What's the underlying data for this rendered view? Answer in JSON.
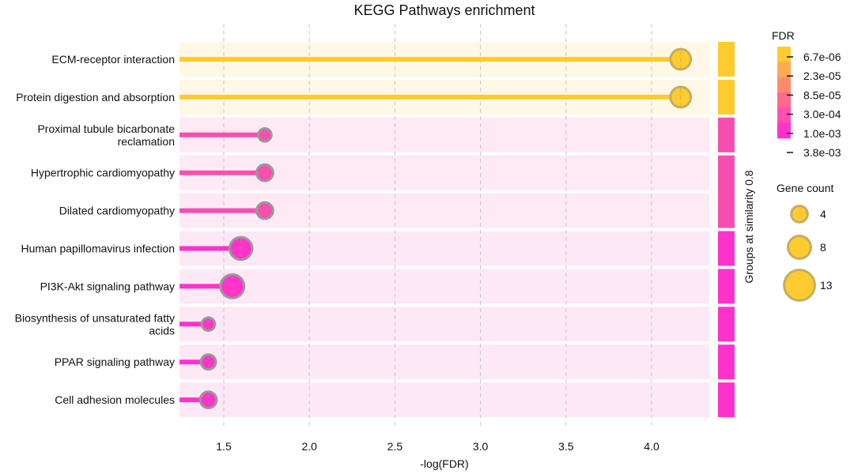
{
  "chart_data": {
    "type": "scatter",
    "title": "KEGG Pathways enrichment",
    "xlabel": "-log(FDR)",
    "xlim": [
      1.25,
      4.35
    ],
    "xticks": [
      1.5,
      2.0,
      2.5,
      3.0,
      3.5,
      4.0
    ],
    "xtick_labels": [
      "1.5",
      "2.0",
      "2.5",
      "3.0",
      "3.5",
      "4.0"
    ],
    "grid": "x-dashed",
    "categories": [
      {
        "label": [
          "ECM-receptor interaction"
        ],
        "x": 4.17,
        "gene_count": 8,
        "color": "#ffcb2e",
        "band": "#fff8e6"
      },
      {
        "label": [
          "Protein digestion and absorption"
        ],
        "x": 4.17,
        "gene_count": 8,
        "color": "#ffcb2e",
        "band": "#fff8e6"
      },
      {
        "label": [
          "Proximal tubule bicarbonate",
          "reclamation"
        ],
        "x": 1.74,
        "gene_count": 3,
        "color": "#f84eb0",
        "band": "#fdeaf5"
      },
      {
        "label": [
          "Hypertrophic cardiomyopathy"
        ],
        "x": 1.74,
        "gene_count": 5,
        "color": "#f84eb0",
        "band": "#fdeaf5"
      },
      {
        "label": [
          "Dilated cardiomyopathy"
        ],
        "x": 1.74,
        "gene_count": 5,
        "color": "#f84eb0",
        "band": "#fdeaf5"
      },
      {
        "label": [
          "Human papillomavirus infection"
        ],
        "x": 1.6,
        "gene_count": 10,
        "color": "#ff33cc",
        "band": "#fde8f6"
      },
      {
        "label": [
          "PI3K-Akt signaling pathway"
        ],
        "x": 1.55,
        "gene_count": 11,
        "color": "#ff33cc",
        "band": "#fde8f6"
      },
      {
        "label": [
          "Biosynthesis of unsaturated fatty",
          "acids"
        ],
        "x": 1.41,
        "gene_count": 3,
        "color": "#ff33cc",
        "band": "#fde8f6"
      },
      {
        "label": [
          "PPAR signaling pathway"
        ],
        "x": 1.41,
        "gene_count": 4,
        "color": "#ff33cc",
        "band": "#fde8f6"
      },
      {
        "label": [
          "Cell adhesion molecules"
        ],
        "x": 1.41,
        "gene_count": 5,
        "color": "#ff33cc",
        "band": "#fde8f6"
      }
    ],
    "group_strip": {
      "label": "Groups at similarity 0.8",
      "groups": [
        {
          "rows": [
            0,
            0
          ],
          "color": "#ffcb2e"
        },
        {
          "rows": [
            1,
            1
          ],
          "color": "#ffcb2e"
        },
        {
          "rows": [
            2,
            2
          ],
          "color": "#f84eb0"
        },
        {
          "rows": [
            3,
            4
          ],
          "color": "#f84eb0"
        },
        {
          "rows": [
            5,
            5
          ],
          "color": "#ff33cc"
        },
        {
          "rows": [
            6,
            6
          ],
          "color": "#ff33cc"
        },
        {
          "rows": [
            7,
            7
          ],
          "color": "#ff33cc"
        },
        {
          "rows": [
            8,
            8
          ],
          "color": "#ff33cc"
        },
        {
          "rows": [
            9,
            9
          ],
          "color": "#ff33cc"
        }
      ]
    },
    "fdr_legend": {
      "title": "FDR",
      "colors": [
        "#ffcb2e",
        "#ffaa55",
        "#ff8a70",
        "#fe6a8d",
        "#ff4fb5",
        "#ff33cc"
      ],
      "tick_labels": [
        "6.7e-06",
        "2.3e-05",
        "8.5e-05",
        "3.0e-04",
        "1.0e-03",
        "3.8e-03"
      ]
    },
    "size_legend": {
      "title": "Gene count",
      "values": [
        4,
        8,
        13
      ],
      "labels": [
        "4",
        "8",
        "13"
      ],
      "color": "#ffcb2e",
      "edge_color": "#c4ad62"
    },
    "marker_edge_color": "#999999",
    "marker_edge_color_gold": "#c4ad62"
  }
}
